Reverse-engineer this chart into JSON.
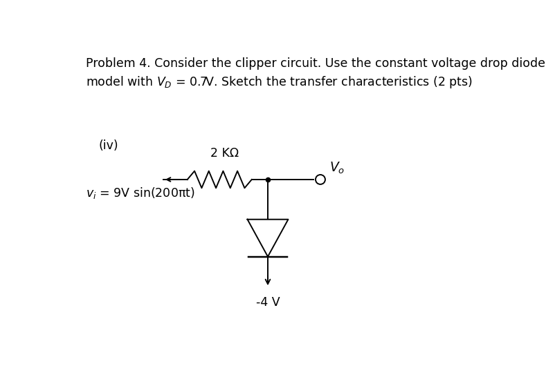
{
  "background_color": "#ffffff",
  "title_line1": "Problem 4. Consider the clipper circuit. Use the constant voltage drop diode",
  "title_line2": "model with $V_D$ = 0.7V. Sketch the transfer characteristics (2 pts)",
  "label_iv": "(iv)",
  "label_2kohm": "2 KΩ",
  "label_vi": "$v_i$ = 9V sin(200πt)",
  "label_vo": "$V_o$",
  "label_neg4v": "-4 V",
  "font_size_title": 12.5,
  "font_size_labels": 12.5,
  "fig_width": 8.02,
  "fig_height": 5.3,
  "dpi": 100
}
